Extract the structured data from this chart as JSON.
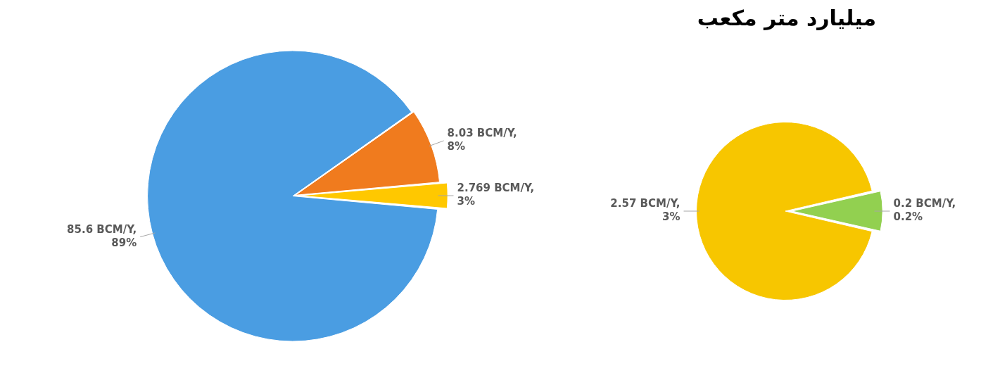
{
  "chart_data": [
    {
      "type": "pie",
      "categories": [
        null,
        null,
        null
      ],
      "values": [
        85.6,
        8.03,
        2.769
      ],
      "colors": [
        "#4a9de2",
        "#f07b1e",
        "#ffc800"
      ],
      "value_labels": [
        "85.6 BCM/Y, 89%",
        "8.03 BCM/Y, 8%",
        "2.769 BCM/Y, 3%"
      ],
      "legend": false
    },
    {
      "type": "pie",
      "title": "میلیارد متر مکعب",
      "categories": [
        null,
        null
      ],
      "values": [
        2.57,
        0.2
      ],
      "colors": [
        "#f7c600",
        "#92d050"
      ],
      "value_labels": [
        "2.57 BCM/Y, 3%",
        "0.2 BCM/Y, 0.2%"
      ],
      "legend": false
    }
  ]
}
